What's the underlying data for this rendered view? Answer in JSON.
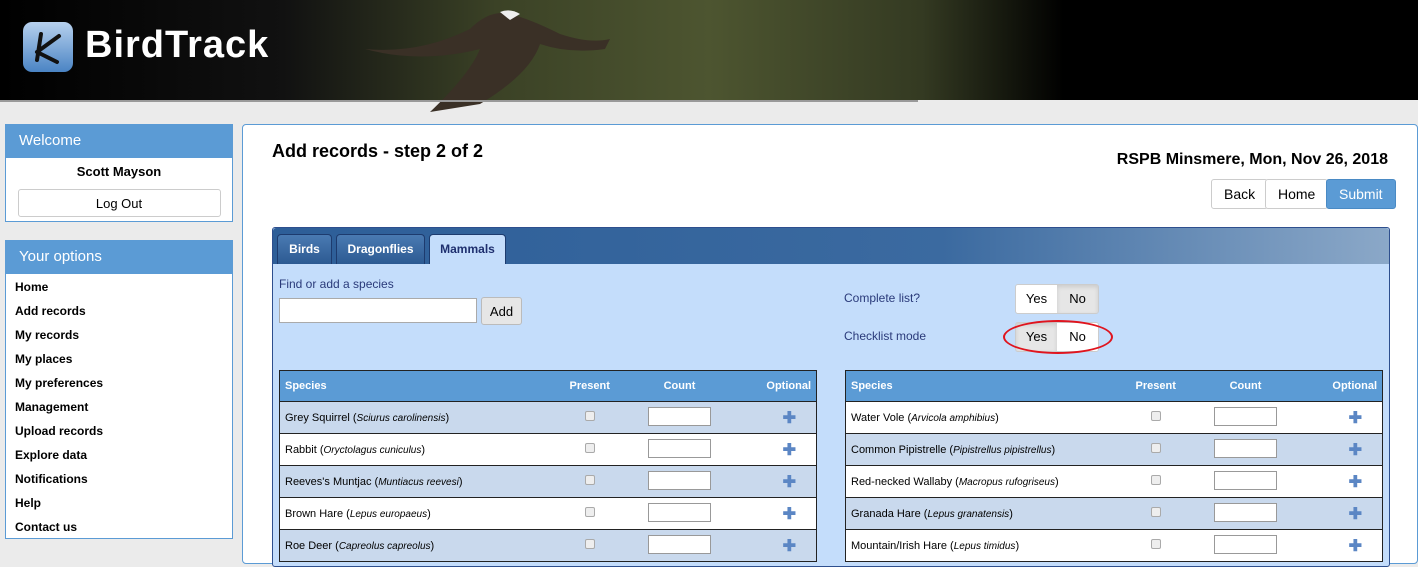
{
  "header": {
    "logo_text": "BirdTrack"
  },
  "welcome": {
    "title": "Welcome",
    "user": "Scott Mayson",
    "logout": "Log Out"
  },
  "options": {
    "title": "Your options",
    "items": [
      "Home",
      "Add records",
      "My records",
      "My places",
      "My preferences",
      "Management",
      "Upload records",
      "Explore data",
      "Notifications",
      "Help",
      "Contact us"
    ]
  },
  "main": {
    "title": "Add records - step 2 of 2",
    "location": "RSPB Minsmere, Mon, Nov 26, 2018",
    "back": "Back",
    "home": "Home",
    "submit": "Submit"
  },
  "tabs": [
    {
      "label": "Birds"
    },
    {
      "label": "Dragonflies"
    },
    {
      "label": "Mammals",
      "active": true
    }
  ],
  "find": {
    "label": "Find or add a species",
    "value": "",
    "add": "Add"
  },
  "complete_list": {
    "label": "Complete list?",
    "yes": "Yes",
    "no": "No",
    "selected": "No"
  },
  "checklist_mode": {
    "label": "Checklist mode",
    "yes": "Yes",
    "no": "No",
    "selected": "Yes"
  },
  "columns": {
    "species": "Species",
    "present": "Present",
    "count": "Count",
    "optional": "Optional"
  },
  "left_rows": [
    {
      "name": "Grey Squirrel",
      "sci": "Sciurus carolinensis"
    },
    {
      "name": "Rabbit",
      "sci": "Oryctolagus cuniculus"
    },
    {
      "name": "Reeves's Muntjac",
      "sci": "Muntiacus reevesi"
    },
    {
      "name": "Brown Hare",
      "sci": "Lepus europaeus"
    },
    {
      "name": "Roe Deer",
      "sci": "Capreolus capreolus"
    }
  ],
  "right_rows": [
    {
      "name": "Water Vole",
      "sci": "Arvicola amphibius"
    },
    {
      "name": "Common Pipistrelle",
      "sci": "Pipistrellus pipistrellus"
    },
    {
      "name": "Red-necked Wallaby",
      "sci": "Macropus rufogriseus"
    },
    {
      "name": "Granada Hare",
      "sci": "Lepus granatensis"
    },
    {
      "name": "Mountain/Irish Hare",
      "sci": "Lepus timidus"
    }
  ],
  "colors": {
    "accent": "#5b9bd5",
    "submit": "#5b9bd5",
    "highlight_ring": "#e0141e"
  }
}
